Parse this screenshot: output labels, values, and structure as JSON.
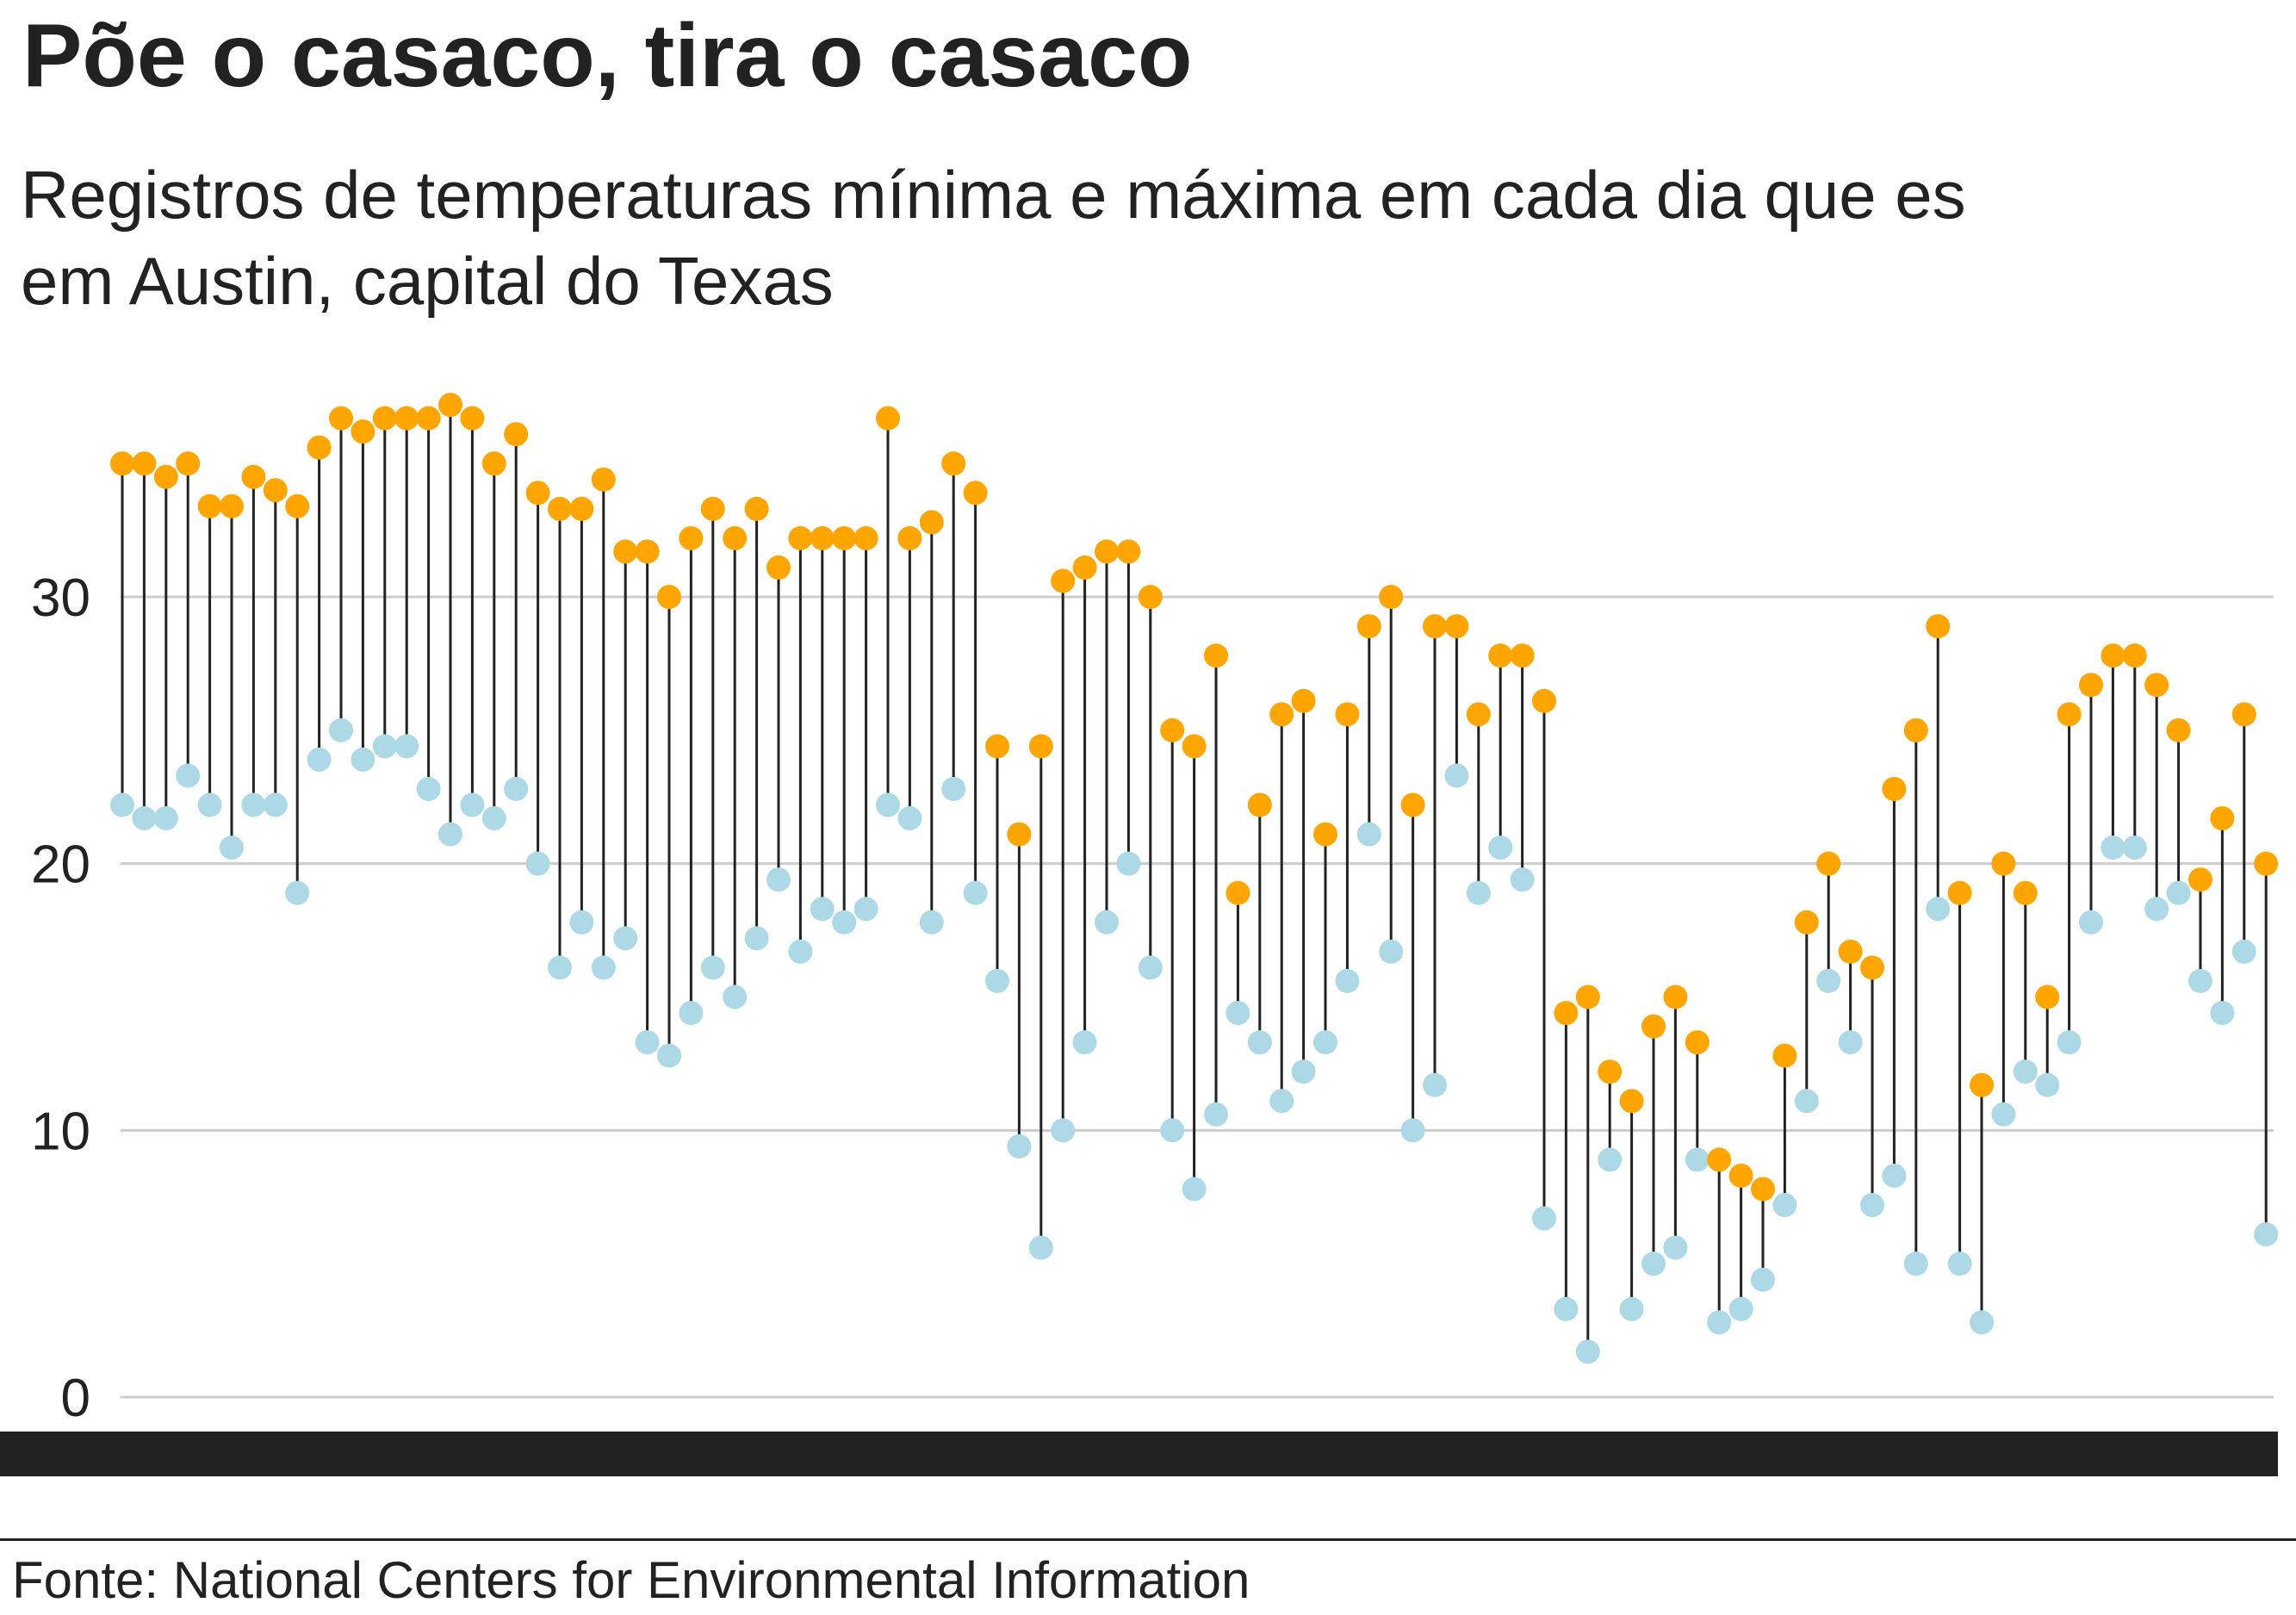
{
  "title": "Põe o casaco, tira o casaco",
  "subtitle_line1": "Registros de temperaturas mínima e máxima em cada dia que es",
  "subtitle_line2": "em Austin, capital do Texas",
  "source": "Fonte: National Centers for Environmental Information",
  "colors": {
    "max": "#FFA500",
    "min": "#ADD8E6",
    "stem": "#222222",
    "grid": "#cccccc",
    "text": "#222222"
  },
  "chart_data": {
    "type": "dumbbell",
    "y_ticks": [
      0,
      10,
      20,
      30
    ],
    "ylim": [
      0,
      38
    ],
    "grid": true,
    "series": [
      {
        "name": "",
        "values": [
          35,
          35,
          34.5,
          35,
          33.4,
          33.4,
          34.5,
          34,
          33.4,
          35.6,
          36.7,
          36.2,
          36.7,
          36.7,
          36.7,
          37.2,
          36.7,
          35,
          36.1,
          33.9,
          33.3,
          33.3,
          34.4,
          31.7,
          31.7,
          30,
          32.2,
          33.3,
          32.2,
          33.3,
          31.1,
          32.2,
          32.2,
          32.2,
          32.2,
          36.7,
          32.2,
          32.8,
          35,
          33.9,
          24.4,
          21.1,
          24.4,
          30.6,
          31.1,
          31.7,
          31.7,
          30,
          25,
          24.4,
          27.8,
          18.9,
          22.2,
          25.6,
          26.1,
          21.1,
          25.6,
          28.9,
          30,
          22.2,
          28.9,
          28.9,
          25.6,
          27.8,
          27.8,
          26.1,
          14.4,
          15,
          12.2,
          11.1,
          13.9,
          15,
          13.3,
          8.9,
          8.3,
          7.8,
          12.8,
          17.8,
          20,
          16.7,
          16.1,
          22.8,
          25,
          28.9,
          18.9,
          11.7,
          20,
          18.9,
          15,
          25.6,
          26.7,
          27.8,
          27.8,
          26.7,
          25,
          19.4,
          21.7,
          25.6,
          20
        ]
      },
      {
        "name": "",
        "values": [
          22.2,
          21.7,
          21.7,
          23.3,
          22.2,
          20.6,
          22.2,
          22.2,
          18.9,
          23.9,
          25,
          23.9,
          24.4,
          24.4,
          22.8,
          21.1,
          22.2,
          21.7,
          22.8,
          20,
          16.1,
          17.8,
          16.1,
          17.2,
          13.3,
          12.8,
          14.4,
          16.1,
          15,
          17.2,
          19.4,
          16.7,
          18.3,
          17.8,
          18.3,
          22.2,
          21.7,
          17.8,
          22.8,
          18.9,
          15.6,
          9.4,
          5.6,
          10,
          13.3,
          17.8,
          20,
          16.1,
          10,
          7.8,
          10.6,
          14.4,
          13.3,
          11.1,
          12.2,
          13.3,
          15.6,
          21.1,
          16.7,
          10,
          11.7,
          23.3,
          18.9,
          20.6,
          19.4,
          6.7,
          3.3,
          1.7,
          8.9,
          3.3,
          5,
          5.6,
          8.9,
          2.8,
          3.3,
          4.4,
          7.2,
          11.1,
          15.6,
          13.3,
          7.2,
          8.3,
          5,
          18.3,
          5,
          2.8,
          10.6,
          12.2,
          11.7,
          13.3,
          17.8,
          20.6,
          20.6,
          18.3,
          18.9,
          15.6,
          14.4,
          16.7,
          6.1
        ]
      }
    ]
  }
}
